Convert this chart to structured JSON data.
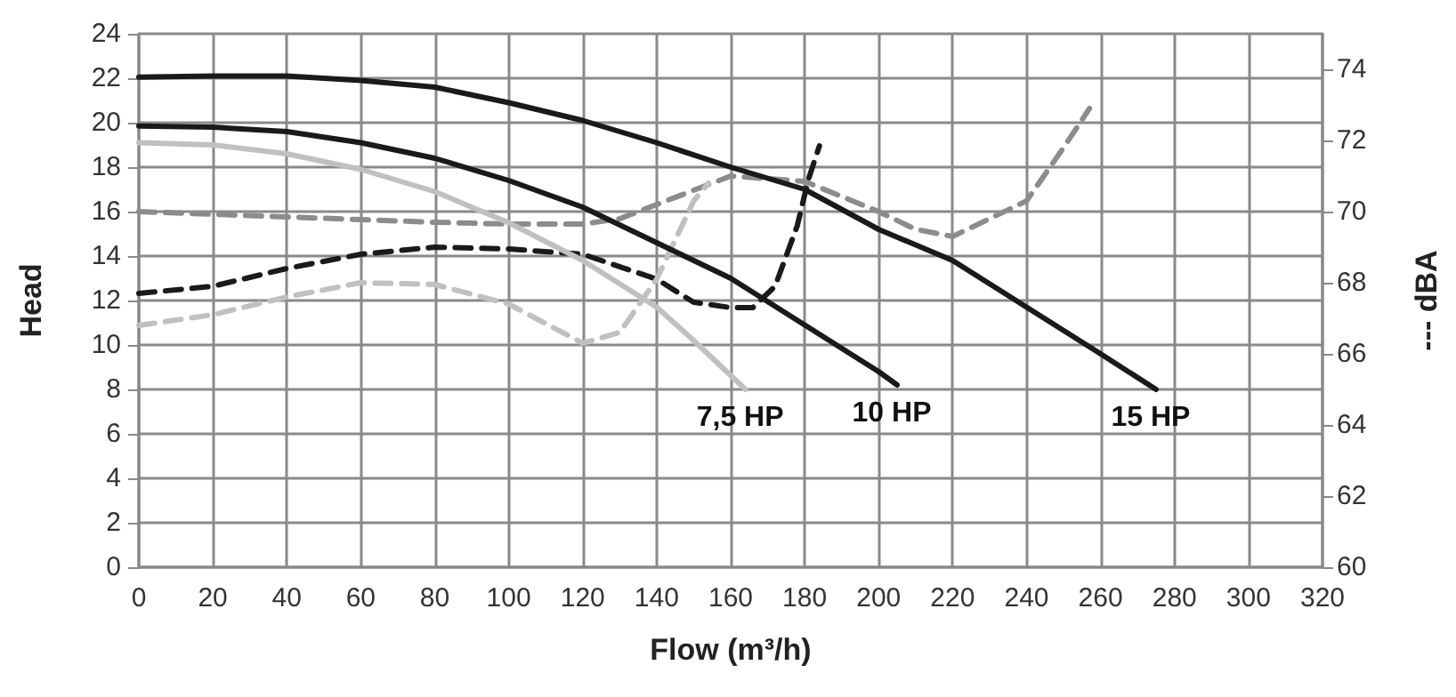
{
  "chart_data": {
    "type": "line",
    "xlabel": "Flow (m³/h)",
    "ylabel": "Head",
    "y2label": "--- dBA",
    "xlim": [
      0,
      320
    ],
    "xticks": [
      0,
      20,
      40,
      60,
      80,
      100,
      120,
      140,
      160,
      180,
      200,
      220,
      240,
      260,
      280,
      300,
      320
    ],
    "ylim": [
      0,
      24
    ],
    "yticks": [
      0,
      2,
      4,
      6,
      8,
      10,
      12,
      14,
      16,
      18,
      20,
      22,
      24
    ],
    "y2lim": [
      60,
      75
    ],
    "y2ticks": [
      60,
      62,
      64,
      66,
      68,
      70,
      72,
      74
    ],
    "grid": true,
    "marker": "none",
    "series": [
      {
        "color": "#1a1a1a",
        "line_style": "solid",
        "x": [
          0,
          20,
          40,
          60,
          80,
          100,
          120,
          140,
          160,
          180,
          200,
          220,
          240,
          260,
          275
        ],
        "values": [
          22.05,
          22.1,
          22.1,
          21.9,
          21.6,
          20.9,
          20.1,
          19.1,
          18.0,
          17.0,
          15.2,
          13.8,
          11.7,
          9.6,
          8.0
        ]
      },
      {
        "color": "#1a1a1a",
        "line_style": "solid",
        "x": [
          0,
          20,
          40,
          60,
          80,
          100,
          120,
          140,
          160,
          180,
          200,
          205
        ],
        "values": [
          19.85,
          19.8,
          19.6,
          19.1,
          18.4,
          17.4,
          16.2,
          14.6,
          13.0,
          10.9,
          8.8,
          8.2
        ]
      },
      {
        "color": "#c0c0c0",
        "line_style": "solid",
        "x": [
          0,
          20,
          40,
          60,
          80,
          100,
          120,
          140,
          150,
          164
        ],
        "values": [
          19.1,
          19.0,
          18.6,
          17.9,
          16.9,
          15.5,
          13.8,
          11.7,
          10.2,
          8.0
        ]
      },
      {
        "color": "#8c8c8c",
        "line_style": "dashed",
        "axis": "y2",
        "x": [
          0,
          40,
          80,
          100,
          120,
          130,
          140,
          160,
          180,
          200,
          210,
          220,
          240,
          250,
          257
        ],
        "values": [
          70.0,
          69.85,
          69.7,
          69.65,
          69.65,
          69.8,
          70.2,
          71.0,
          70.85,
          70.0,
          69.5,
          69.3,
          70.3,
          71.8,
          72.9
        ]
      },
      {
        "color": "#1a1a1a",
        "line_style": "dashed",
        "axis": "y2",
        "x": [
          0,
          20,
          40,
          60,
          80,
          100,
          120,
          140,
          150,
          160,
          166,
          172,
          178,
          181,
          184
        ],
        "values": [
          67.7,
          67.9,
          68.4,
          68.8,
          69.0,
          68.95,
          68.8,
          68.1,
          67.45,
          67.3,
          67.3,
          67.9,
          69.6,
          70.9,
          71.85
        ]
      },
      {
        "color": "#c0c0c0",
        "line_style": "dashed",
        "axis": "y2",
        "x": [
          0,
          20,
          40,
          60,
          80,
          100,
          110,
          120,
          130,
          140,
          150,
          154
        ],
        "values": [
          66.8,
          67.1,
          67.6,
          68.0,
          67.95,
          67.4,
          66.85,
          66.3,
          66.6,
          68.1,
          70.3,
          70.8
        ]
      }
    ],
    "annotations": [
      {
        "text": "7,5 HP",
        "x": 164,
        "y": 8.0
      },
      {
        "text": "10 HP",
        "x": 205,
        "y": 8.2
      },
      {
        "text": "15 HP",
        "x": 275,
        "y": 8.0
      }
    ]
  }
}
